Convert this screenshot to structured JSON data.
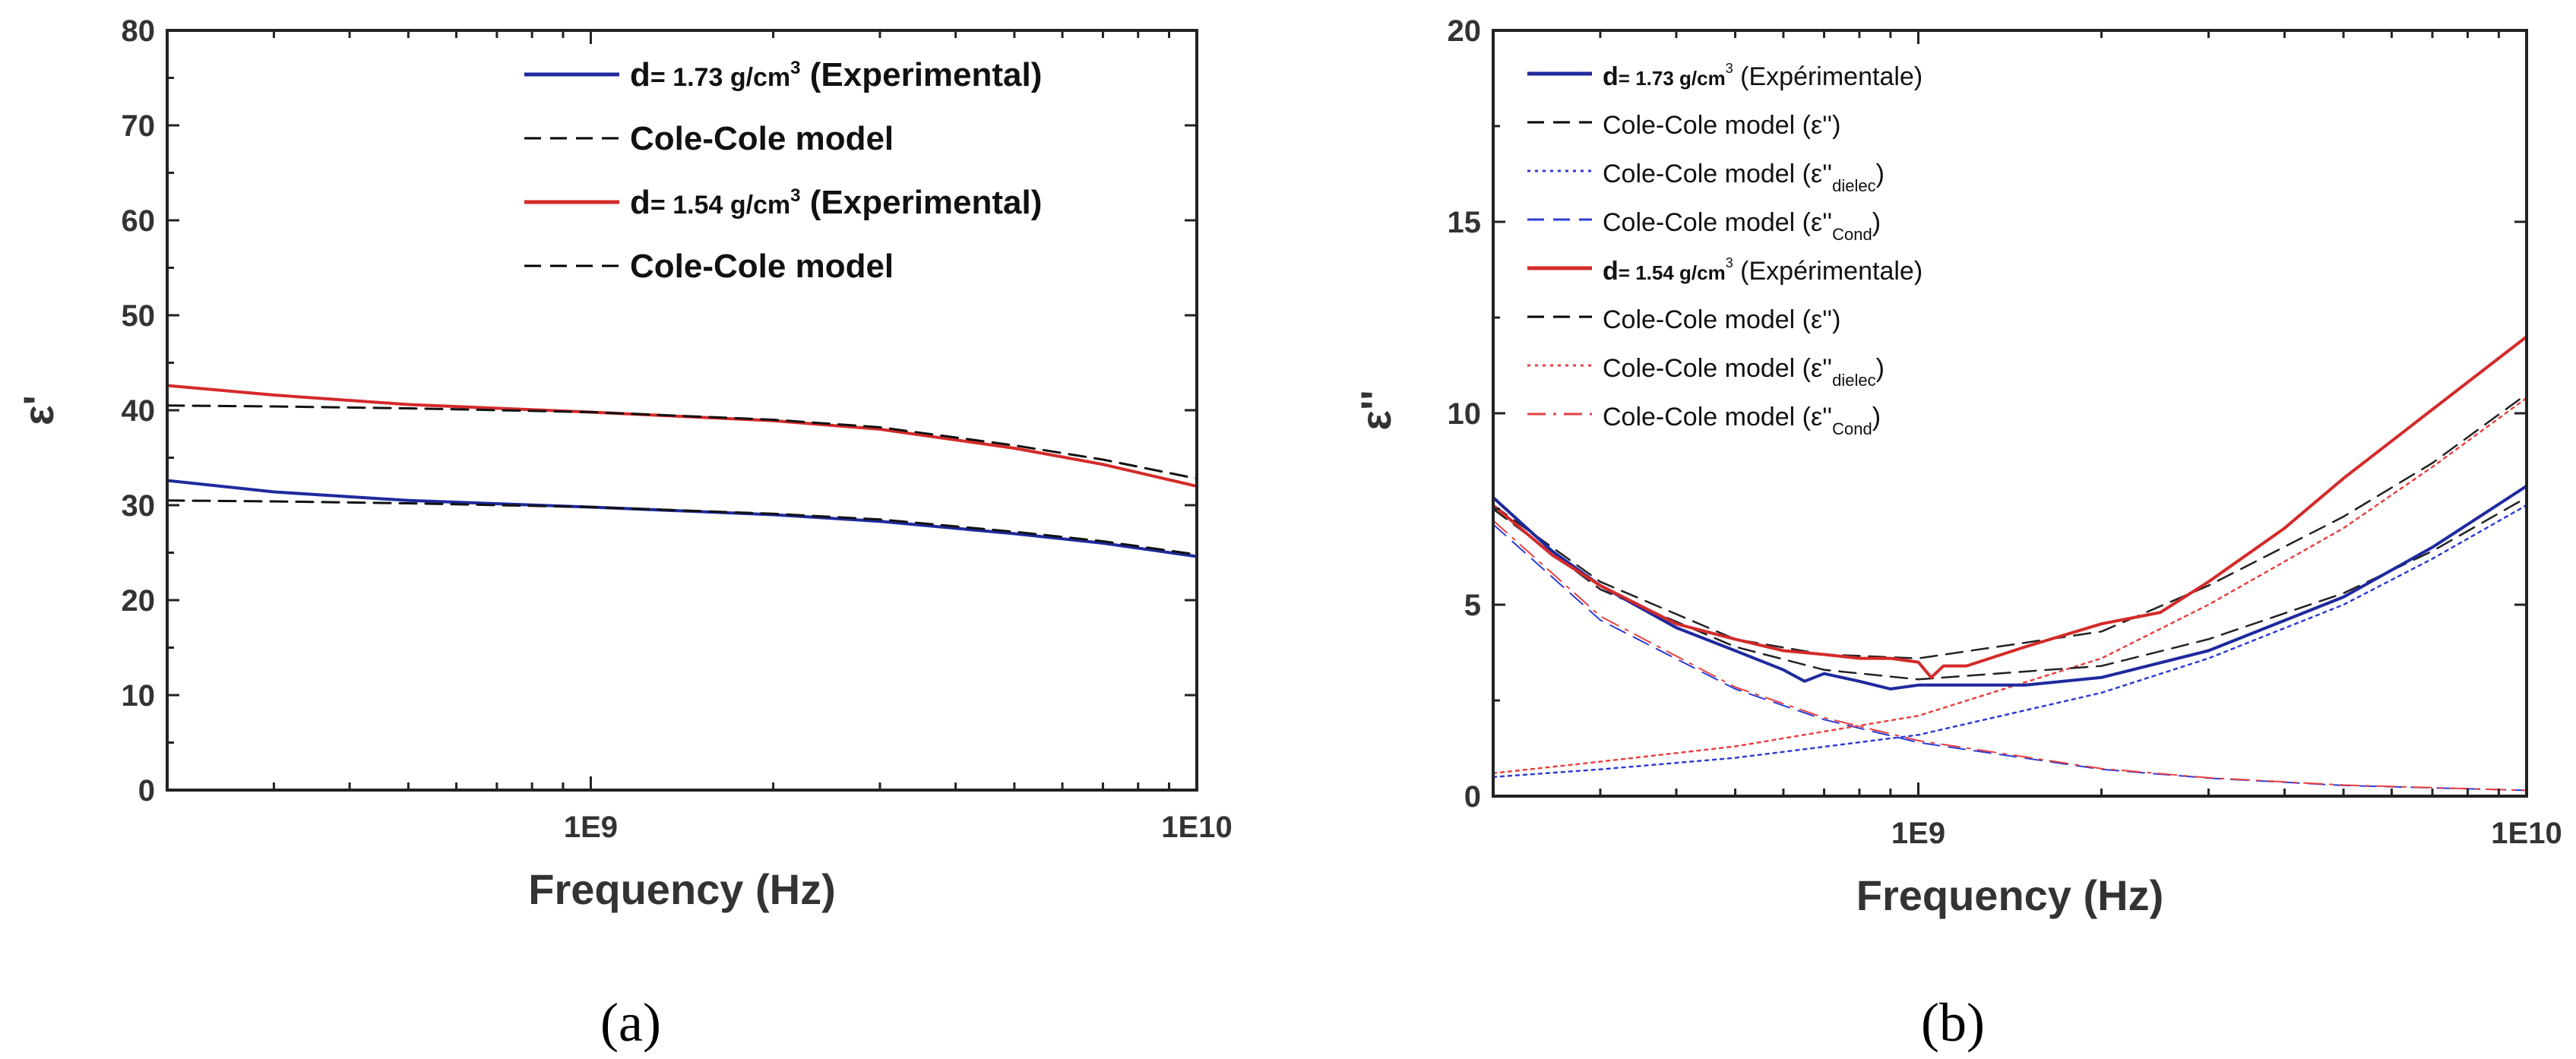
{
  "chart_data": [
    {
      "type": "line",
      "panel_label": "(a)",
      "xlabel": "Frequency (Hz)",
      "ylabel": "ε'",
      "x_scale": "log",
      "xlim": [
        200000000,
        10000000000
      ],
      "ylim": [
        0,
        80
      ],
      "x_ticks": [
        {
          "value": 1000000000,
          "label": "1E9"
        },
        {
          "value": 10000000000,
          "label": "1E10"
        }
      ],
      "y_ticks": [
        0,
        10,
        20,
        30,
        40,
        50,
        60,
        70,
        80
      ],
      "legend_position": "top-right",
      "legend": [
        {
          "label": "d= 1.73 g/cm³ (Experimental)",
          "color": "#1f2a9e",
          "style": "solid"
        },
        {
          "label": "Cole-Cole model",
          "color": "#000000",
          "style": "dashed"
        },
        {
          "label": "d= 1.54 g/cm³ (Experimental)",
          "color": "#d42a2a",
          "style": "solid"
        },
        {
          "label": "Cole-Cole model",
          "color": "#000000",
          "style": "dashed"
        }
      ],
      "series": [
        {
          "color": "#d42a2a",
          "style": "solid",
          "width": 4,
          "x": [
            200000000,
            300000000,
            500000000,
            1000000000,
            2000000000,
            3000000000,
            5000000000,
            7000000000,
            10000000000
          ],
          "y": [
            42.6,
            41.6,
            40.6,
            39.8,
            38.9,
            38.0,
            36.0,
            34.3,
            32.0
          ]
        },
        {
          "color": "#111111",
          "style": "dashed",
          "width": 3,
          "x": [
            200000000,
            300000000,
            500000000,
            1000000000,
            2000000000,
            3000000000,
            5000000000,
            7000000000,
            10000000000
          ],
          "y": [
            40.5,
            40.4,
            40.2,
            39.8,
            39.0,
            38.2,
            36.3,
            34.8,
            32.8
          ]
        },
        {
          "color": "#1f2a9e",
          "style": "solid",
          "width": 4,
          "x": [
            200000000,
            300000000,
            500000000,
            1000000000,
            2000000000,
            3000000000,
            5000000000,
            7000000000,
            10000000000
          ],
          "y": [
            32.6,
            31.4,
            30.5,
            29.8,
            29.0,
            28.3,
            27.0,
            26.0,
            24.6
          ]
        },
        {
          "color": "#111111",
          "style": "dashed",
          "width": 3,
          "x": [
            200000000,
            300000000,
            500000000,
            1000000000,
            2000000000,
            3000000000,
            5000000000,
            7000000000,
            10000000000
          ],
          "y": [
            30.5,
            30.4,
            30.2,
            29.8,
            29.1,
            28.5,
            27.2,
            26.2,
            24.8
          ]
        }
      ]
    },
    {
      "type": "line",
      "panel_label": "(b)",
      "xlabel": "Frequency (Hz)",
      "ylabel": "ε''",
      "x_scale": "log",
      "xlim": [
        200000000,
        10000000000
      ],
      "ylim": [
        0,
        20
      ],
      "x_ticks": [
        {
          "value": 1000000000,
          "label": "1E9"
        },
        {
          "value": 10000000000,
          "label": "1E10"
        }
      ],
      "y_ticks": [
        0,
        5,
        10,
        15,
        20
      ],
      "legend_position": "top-left",
      "legend": [
        {
          "label": "d= 1.73 g/cm³ (Expérimentale)",
          "color": "#1f2a9e",
          "style": "solid"
        },
        {
          "label": "Cole-Cole model (ε'')",
          "color": "#000000",
          "style": "dashed"
        },
        {
          "label": "Cole-Cole model (ε''dielec)",
          "color": "#2d3bd4",
          "style": "dotted"
        },
        {
          "label": "Cole-Cole model (ε''Cond)",
          "color": "#2d3bd4",
          "style": "dashed"
        },
        {
          "label": "d= 1.54 g/cm³ (Expérimentale)",
          "color": "#d42a2a",
          "style": "solid"
        },
        {
          "label": "Cole-Cole model (ε'')",
          "color": "#000000",
          "style": "dashed"
        },
        {
          "label": "Cole-Cole model (ε''dielec)",
          "color": "#e84040",
          "style": "dotted"
        },
        {
          "label": "Cole-Cole model (ε''Cond)",
          "color": "#e84040",
          "style": "dashdot"
        }
      ],
      "series": [
        {
          "color": "#2d3bd4",
          "style": "dashed",
          "width": 2,
          "x": [
            200000000,
            300000000,
            500000000,
            700000000,
            1000000000,
            2000000000,
            3000000000,
            5000000000,
            10000000000
          ],
          "y": [
            7.1,
            4.6,
            2.8,
            2.0,
            1.4,
            0.7,
            0.47,
            0.28,
            0.15
          ]
        },
        {
          "color": "#e84040",
          "style": "dashdot",
          "width": 2,
          "x": [
            200000000,
            300000000,
            500000000,
            700000000,
            1000000000,
            2000000000,
            3000000000,
            5000000000,
            10000000000
          ],
          "y": [
            7.2,
            4.7,
            2.85,
            2.05,
            1.45,
            0.72,
            0.48,
            0.29,
            0.15
          ]
        },
        {
          "color": "#2d3bd4",
          "style": "dotted",
          "width": 2.5,
          "x": [
            200000000,
            300000000,
            500000000,
            1000000000,
            2000000000,
            3000000000,
            5000000000,
            7000000000,
            10000000000
          ],
          "y": [
            0.5,
            0.7,
            1.0,
            1.6,
            2.7,
            3.6,
            5.0,
            6.2,
            7.6
          ]
        },
        {
          "color": "#e84040",
          "style": "dotted",
          "width": 2.5,
          "x": [
            200000000,
            300000000,
            500000000,
            1000000000,
            2000000000,
            3000000000,
            5000000000,
            7000000000,
            10000000000
          ],
          "y": [
            0.6,
            0.9,
            1.3,
            2.1,
            3.6,
            5.0,
            7.0,
            8.6,
            10.4
          ]
        },
        {
          "color": "#222222",
          "style": "dashed",
          "width": 2.5,
          "x": [
            200000000,
            300000000,
            500000000,
            700000000,
            1000000000,
            2000000000,
            3000000000,
            5000000000,
            7000000000,
            10000000000
          ],
          "y": [
            7.5,
            5.4,
            3.9,
            3.3,
            3.05,
            3.4,
            4.1,
            5.3,
            6.4,
            7.8
          ]
        },
        {
          "color": "#222222",
          "style": "dashed",
          "width": 2.5,
          "x": [
            200000000,
            300000000,
            500000000,
            700000000,
            1000000000,
            2000000000,
            3000000000,
            5000000000,
            7000000000,
            10000000000
          ],
          "y": [
            7.6,
            5.6,
            4.1,
            3.7,
            3.6,
            4.3,
            5.5,
            7.3,
            8.7,
            10.5
          ]
        },
        {
          "color": "#1f2a9e",
          "style": "solid",
          "width": 4,
          "x": [
            200000000,
            250000000,
            300000000,
            400000000,
            500000000,
            600000000,
            650000000,
            700000000,
            800000000,
            900000000,
            1000000000,
            1200000000,
            1500000000,
            2000000000,
            3000000000,
            5000000000,
            7000000000,
            10000000000
          ],
          "y": [
            7.8,
            6.4,
            5.5,
            4.4,
            3.8,
            3.3,
            3.0,
            3.2,
            3.0,
            2.8,
            2.9,
            2.9,
            2.9,
            3.1,
            3.8,
            5.2,
            6.5,
            8.1
          ]
        },
        {
          "color": "#d42a2a",
          "style": "solid",
          "width": 4,
          "x": [
            200000000,
            250000000,
            300000000,
            400000000,
            500000000,
            600000000,
            700000000,
            800000000,
            900000000,
            1000000000,
            1050000000,
            1100000000,
            1200000000,
            1500000000,
            2000000000,
            2500000000,
            3000000000,
            4000000000,
            5000000000,
            7000000000,
            10000000000
          ],
          "y": [
            7.6,
            6.3,
            5.5,
            4.5,
            4.1,
            3.8,
            3.7,
            3.6,
            3.6,
            3.5,
            3.1,
            3.4,
            3.4,
            3.9,
            4.5,
            4.8,
            5.6,
            7.0,
            8.3,
            10.1,
            12.0
          ]
        }
      ]
    }
  ],
  "labels": {
    "a": {
      "legend": [
        {
          "main": "d",
          "rest": "= 1.73 g/cm",
          "sup": "3",
          "tail": " (Experimental)"
        },
        {
          "main": "Cole-Cole model"
        },
        {
          "main": "d",
          "rest": "= 1.54 g/cm",
          "sup": "3",
          "tail": " (Experimental)"
        },
        {
          "main": "Cole-Cole model"
        }
      ]
    },
    "b": {
      "legend": [
        {
          "main": "d",
          "rest": "= 1.73 g/cm",
          "sup": "3",
          "tail": " (Expérimentale)"
        },
        {
          "main": "Cole-Cole model (ε'')"
        },
        {
          "main": "Cole-Cole model (ε''",
          "sub": "dielec",
          "tail": ")"
        },
        {
          "main": "Cole-Cole model (ε''",
          "sub": "Cond",
          "tail": ")"
        },
        {
          "main": "d",
          "rest": "= 1.54 g/cm",
          "sup": "3",
          "tail": " (Expérimentale)"
        },
        {
          "main": "Cole-Cole model (ε'')"
        },
        {
          "main": "Cole-Cole model (ε''",
          "sub": "dielec",
          "tail": ")"
        },
        {
          "main": "Cole-Cole model (ε''",
          "sub": "Cond",
          "tail": ")"
        }
      ]
    }
  }
}
